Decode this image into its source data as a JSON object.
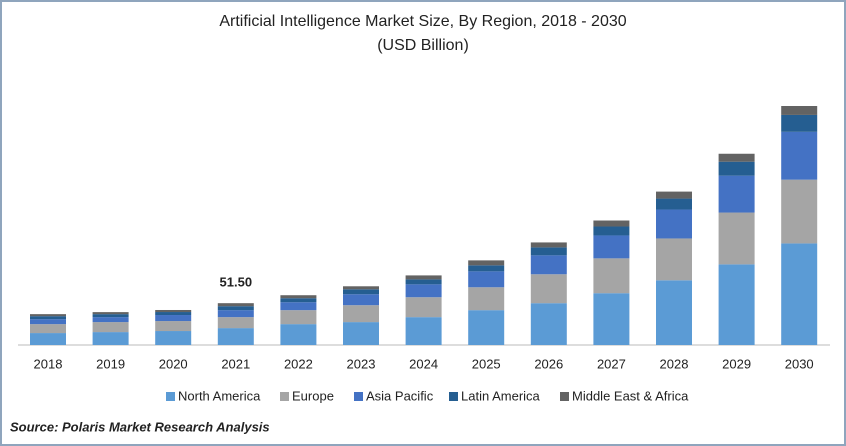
{
  "chart_data": {
    "type": "stacked_bar",
    "title": "Artificial Intelligence Market Size, By Region, 2018 - 2030",
    "subtitle": "(USD Billion)",
    "categories": [
      "2018",
      "2019",
      "2020",
      "2021",
      "2022",
      "2023",
      "2024",
      "2025",
      "2026",
      "2027",
      "2028",
      "2029",
      "2030"
    ],
    "series": [
      {
        "name": "North America",
        "color": "#5b9bd5",
        "values": [
          14.7,
          15.9,
          17.2,
          20.8,
          25.7,
          28.2,
          34.3,
          42.9,
          51.5,
          63.8,
          79.7,
          99.3,
          125.1
        ]
      },
      {
        "name": "Europe",
        "color": "#a5a5a5",
        "values": [
          11.0,
          12.3,
          12.3,
          13.5,
          17.2,
          20.8,
          24.5,
          28.2,
          35.6,
          42.9,
          51.5,
          63.8,
          78.5
        ]
      },
      {
        "name": "Asia Pacific",
        "color": "#4472c4",
        "values": [
          6.1,
          6.1,
          7.4,
          8.6,
          9.8,
          13.5,
          15.9,
          19.6,
          23.3,
          28.2,
          35.6,
          45.4,
          58.9
        ]
      },
      {
        "name": "Latin America",
        "color": "#255e91",
        "values": [
          3.7,
          3.7,
          3.7,
          4.9,
          4.9,
          6.1,
          6.1,
          7.4,
          9.8,
          11.0,
          13.5,
          17.2,
          20.8
        ]
      },
      {
        "name": "Middle East & Africa",
        "color": "#636363",
        "values": [
          2.5,
          2.5,
          2.5,
          3.7,
          3.7,
          3.7,
          4.9,
          6.1,
          6.1,
          7.4,
          8.6,
          9.8,
          11.0
        ]
      }
    ],
    "annotations": [
      {
        "label": "51.50",
        "value": 51.5,
        "category": "2021"
      }
    ],
    "source": "Source: Polaris  Market Research Analysis"
  }
}
